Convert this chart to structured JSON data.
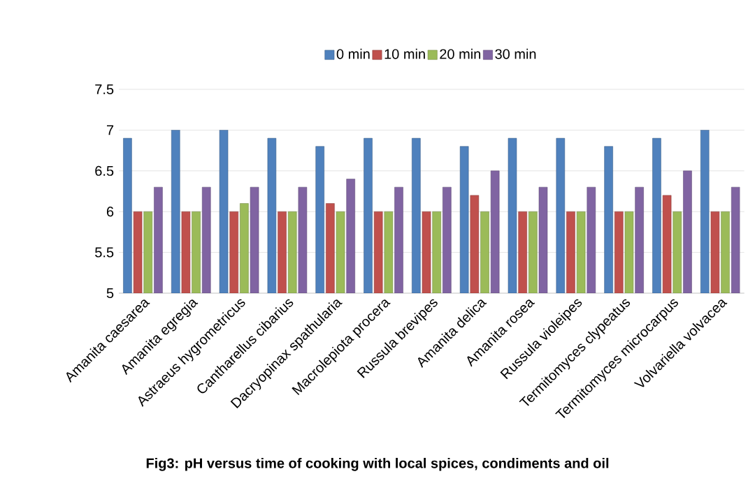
{
  "chart_data": {
    "type": "bar",
    "title": "Fig3: pH versus time of cooking with local spices, condiments and oil",
    "categories": [
      "Amanita caesarea",
      "Amanita egregia",
      "Astraeus hygrometricus",
      "Cantharellus cibarius",
      "Dacryopinax spathularia",
      "Macrolepiota procera",
      "Russula brevipes",
      "Amanita delica",
      "Amanita rosea",
      "Russula violeipes",
      "Termitomyces clypeatus",
      "Termitomyces microcarpus",
      "Volvariella volvacea"
    ],
    "series": [
      {
        "name": "0 min",
        "color": "#4f81bd",
        "values": [
          6.9,
          7,
          7,
          6.9,
          6.8,
          6.9,
          6.9,
          6.8,
          6.9,
          6.9,
          6.8,
          6.9,
          7
        ]
      },
      {
        "name": "10 min",
        "color": "#c0504d",
        "values": [
          6,
          6,
          6,
          6,
          6.1,
          6,
          6,
          6.2,
          6,
          6,
          6,
          6.2,
          6
        ]
      },
      {
        "name": "20 min",
        "color": "#9bbb59",
        "values": [
          6,
          6,
          6.1,
          6,
          6,
          6,
          6,
          6,
          6,
          6,
          6,
          6,
          6
        ]
      },
      {
        "name": "30 min",
        "color": "#8064a2",
        "values": [
          6.3,
          6.3,
          6.3,
          6.3,
          6.4,
          6.3,
          6.3,
          6.5,
          6.3,
          6.3,
          6.3,
          6.5,
          6.3
        ]
      }
    ],
    "ylim": [
      5,
      7.5
    ],
    "yticks": [
      5,
      5.5,
      6,
      6.5,
      7,
      7.5
    ],
    "grid": "y",
    "legend": "top"
  }
}
